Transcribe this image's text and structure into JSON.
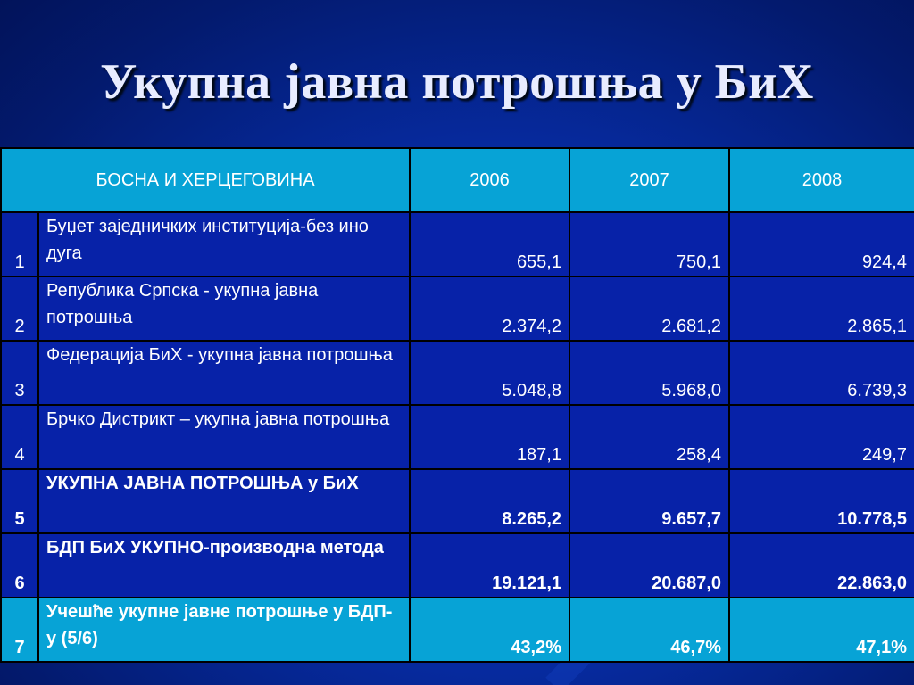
{
  "slide": {
    "title": "Укупна јавна потрошња у БиХ"
  },
  "table": {
    "header": {
      "label": "БОСНА И ХЕРЦЕГОВИНА",
      "years": [
        "2006",
        "2007",
        "2008"
      ]
    },
    "rows": [
      {
        "num": "1",
        "label": "Буџет заједничких институција-без ино дуга",
        "values": [
          "655,1",
          "750,1",
          "924,4"
        ],
        "bold": false
      },
      {
        "num": "2",
        "label": "Република Српска - укупна јавна потрошња",
        "values": [
          "2.374,2",
          "2.681,2",
          "2.865,1"
        ],
        "bold": false
      },
      {
        "num": "3",
        "label": "Федерација БиХ - укупна јавна потрошња",
        "values": [
          "5.048,8",
          "5.968,0",
          "6.739,3"
        ],
        "bold": false
      },
      {
        "num": "4",
        "label": "Брчко Дистрикт – укупна јавна потрошња",
        "values": [
          "187,1",
          "258,4",
          "249,7"
        ],
        "bold": false
      },
      {
        "num": "5",
        "label": "УКУПНА ЈАВНА ПОТРОШЊА у БиХ",
        "values": [
          "8.265,2",
          "9.657,7",
          "10.778,5"
        ],
        "bold": true
      },
      {
        "num": "6",
        "label": "БДП БиХ УКУПНО-производна метода",
        "values": [
          "19.121,1",
          "20.687,0",
          "22.863,0"
        ],
        "bold": true
      },
      {
        "num": "7",
        "label": "Учешће укупне јавне потрошње у БДП-у (5/6)",
        "values": [
          "43,2%",
          "46,7%",
          "47,1%"
        ],
        "bold": true
      }
    ]
  },
  "colors": {
    "background": "#062a9e",
    "header_fill": "#07a3d6",
    "row_fill": "#0722a8"
  }
}
